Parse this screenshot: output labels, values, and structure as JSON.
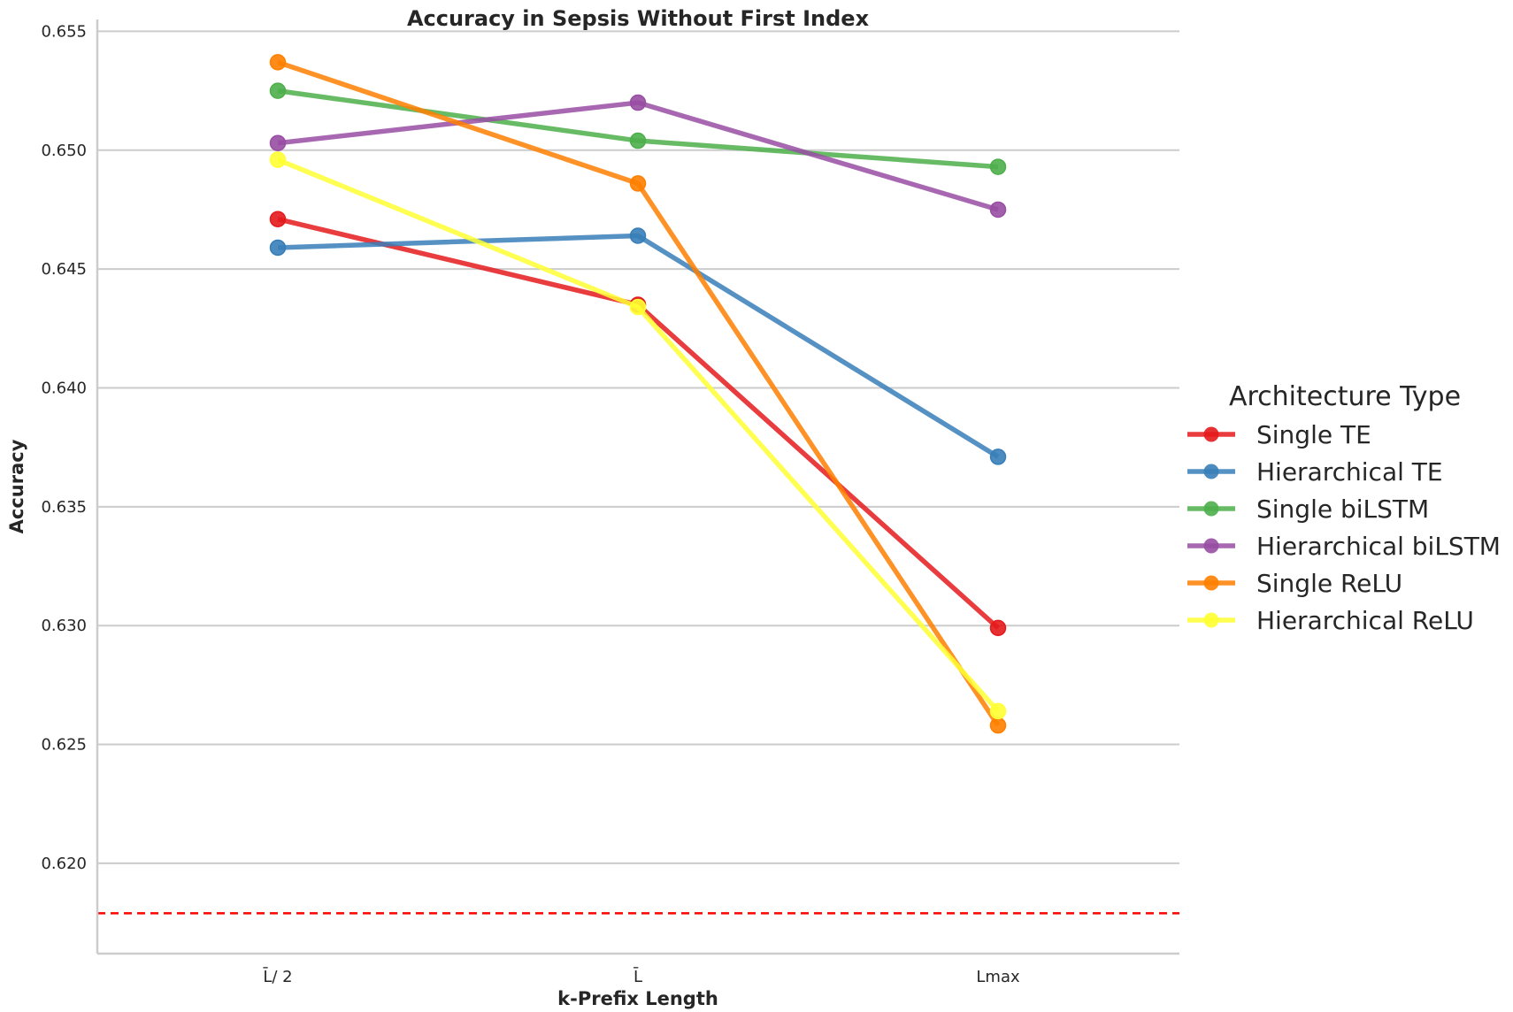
{
  "chart_data": {
    "type": "line",
    "title": "Accuracy in Sepsis Without First Index",
    "xlabel": "k-Prefix Length",
    "ylabel": "Accuracy",
    "categories": [
      "L̄/ 2",
      "L̄",
      "Lmax"
    ],
    "ylim": [
      0.6162,
      0.6555
    ],
    "yticks": [
      0.62,
      0.625,
      0.63,
      0.635,
      0.64,
      0.645,
      0.65,
      0.655
    ],
    "ytick_labels": [
      "0.620",
      "0.625",
      "0.630",
      "0.635",
      "0.640",
      "0.645",
      "0.650",
      "0.655"
    ],
    "grid": "horizontal",
    "baseline": {
      "value": 0.6179,
      "color": "#ff0000",
      "style": "dashed"
    },
    "legend": {
      "title": "Architecture Type",
      "placement": "right"
    },
    "series": [
      {
        "name": "Single TE",
        "color": "#e41a1c",
        "values": [
          0.6471,
          0.6435,
          0.6299
        ]
      },
      {
        "name": "Hierarchical TE",
        "color": "#377eb8",
        "values": [
          0.6459,
          0.6464,
          0.6371
        ]
      },
      {
        "name": "Single biLSTM",
        "color": "#4daf4a",
        "values": [
          0.6525,
          0.6504,
          0.6493
        ]
      },
      {
        "name": "Hierarchical biLSTM",
        "color": "#984ea3",
        "values": [
          0.6503,
          0.652,
          0.6475
        ]
      },
      {
        "name": "Single ReLU",
        "color": "#ff7f00",
        "values": [
          0.6537,
          0.6486,
          0.6258
        ]
      },
      {
        "name": "Hierarchical ReLU",
        "color": "#ffff33",
        "values": [
          0.6496,
          0.6434,
          0.6264
        ]
      }
    ]
  }
}
